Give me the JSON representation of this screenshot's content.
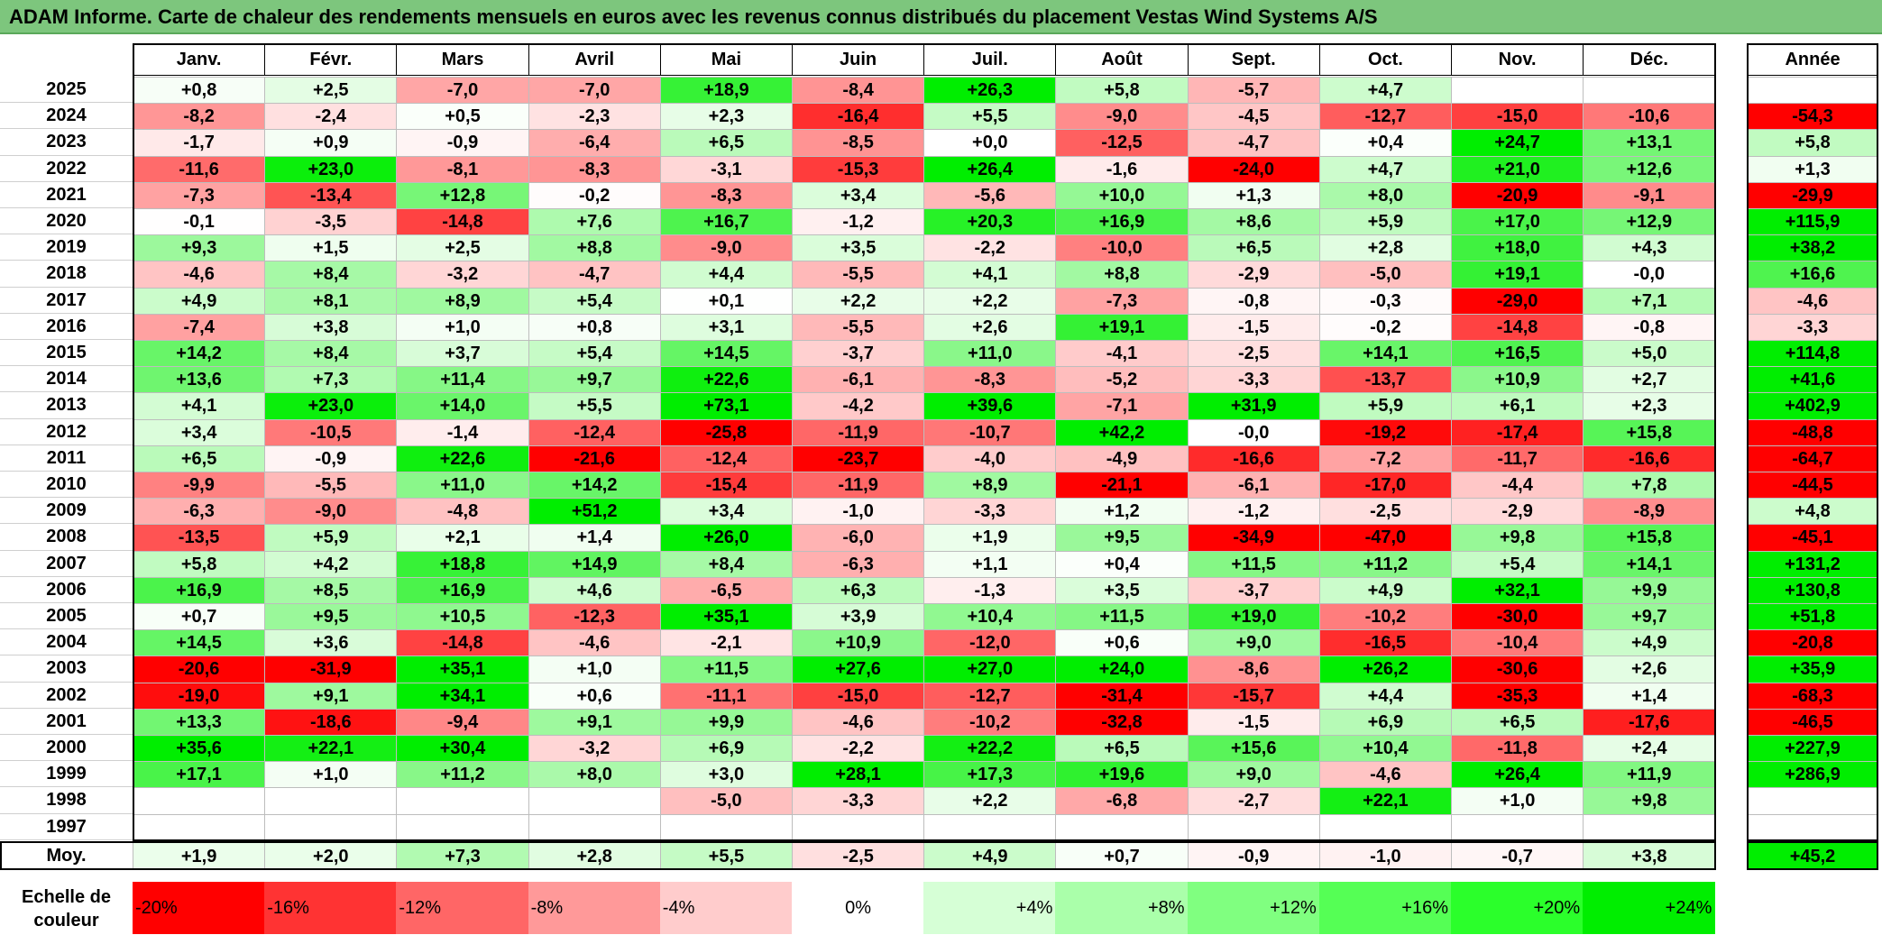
{
  "title": "ADAM Informe. Carte de chaleur des rendements mensuels en euros avec les revenus connus distribués du placement Vestas Wind Systems A/S",
  "chart_data": {
    "type": "heatmap",
    "title": "ADAM Informe. Carte de chaleur des rendements mensuels en euros avec les revenus connus distribués du placement Vestas Wind Systems A/S",
    "months": [
      "Janv.",
      "Févr.",
      "Mars",
      "Avril",
      "Mai",
      "Juin",
      "Juil.",
      "Août",
      "Sept.",
      "Oct.",
      "Nov.",
      "Déc."
    ],
    "year_column_label": "Année",
    "rows": [
      {
        "year": "2025",
        "values": [
          "+0,8",
          "+2,5",
          "-7,0",
          "-7,0",
          "+18,9",
          "-8,4",
          "+26,3",
          "+5,8",
          "-5,7",
          "+4,7",
          "",
          ""
        ],
        "annual": ""
      },
      {
        "year": "2024",
        "values": [
          "-8,2",
          "-2,4",
          "+0,5",
          "-2,3",
          "+2,3",
          "-16,4",
          "+5,5",
          "-9,0",
          "-4,5",
          "-12,7",
          "-15,0",
          "-10,6"
        ],
        "annual": "-54,3"
      },
      {
        "year": "2023",
        "values": [
          "-1,7",
          "+0,9",
          "-0,9",
          "-6,4",
          "+6,5",
          "-8,5",
          "+0,0",
          "-12,5",
          "-4,7",
          "+0,4",
          "+24,7",
          "+13,1"
        ],
        "annual": "+5,8"
      },
      {
        "year": "2022",
        "values": [
          "-11,6",
          "+23,0",
          "-8,1",
          "-8,3",
          "-3,1",
          "-15,3",
          "+26,4",
          "-1,6",
          "-24,0",
          "+4,7",
          "+21,0",
          "+12,6"
        ],
        "annual": "+1,3"
      },
      {
        "year": "2021",
        "values": [
          "-7,3",
          "-13,4",
          "+12,8",
          "-0,2",
          "-8,3",
          "+3,4",
          "-5,6",
          "+10,0",
          "+1,3",
          "+8,0",
          "-20,9",
          "-9,1"
        ],
        "annual": "-29,9"
      },
      {
        "year": "2020",
        "values": [
          "-0,1",
          "-3,5",
          "-14,8",
          "+7,6",
          "+16,7",
          "-1,2",
          "+20,3",
          "+16,9",
          "+8,6",
          "+5,9",
          "+17,0",
          "+12,9"
        ],
        "annual": "+115,9"
      },
      {
        "year": "2019",
        "values": [
          "+9,3",
          "+1,5",
          "+2,5",
          "+8,8",
          "-9,0",
          "+3,5",
          "-2,2",
          "-10,0",
          "+6,5",
          "+2,8",
          "+18,0",
          "+4,3"
        ],
        "annual": "+38,2"
      },
      {
        "year": "2018",
        "values": [
          "-4,6",
          "+8,4",
          "-3,2",
          "-4,7",
          "+4,4",
          "-5,5",
          "+4,1",
          "+8,8",
          "-2,9",
          "-5,0",
          "+19,1",
          "-0,0"
        ],
        "annual": "+16,6"
      },
      {
        "year": "2017",
        "values": [
          "+4,9",
          "+8,1",
          "+8,9",
          "+5,4",
          "+0,1",
          "+2,2",
          "+2,2",
          "-7,3",
          "-0,8",
          "-0,3",
          "-29,0",
          "+7,1"
        ],
        "annual": "-4,6"
      },
      {
        "year": "2016",
        "values": [
          "-7,4",
          "+3,8",
          "+1,0",
          "+0,8",
          "+3,1",
          "-5,5",
          "+2,6",
          "+19,1",
          "-1,5",
          "-0,2",
          "-14,8",
          "-0,8"
        ],
        "annual": "-3,3"
      },
      {
        "year": "2015",
        "values": [
          "+14,2",
          "+8,4",
          "+3,7",
          "+5,4",
          "+14,5",
          "-3,7",
          "+11,0",
          "-4,1",
          "-2,5",
          "+14,1",
          "+16,5",
          "+5,0"
        ],
        "annual": "+114,8"
      },
      {
        "year": "2014",
        "values": [
          "+13,6",
          "+7,3",
          "+11,4",
          "+9,7",
          "+22,6",
          "-6,1",
          "-8,3",
          "-5,2",
          "-3,3",
          "-13,7",
          "+10,9",
          "+2,7"
        ],
        "annual": "+41,6"
      },
      {
        "year": "2013",
        "values": [
          "+4,1",
          "+23,0",
          "+14,0",
          "+5,5",
          "+73,1",
          "-4,2",
          "+39,6",
          "-7,1",
          "+31,9",
          "+5,9",
          "+6,1",
          "+2,3"
        ],
        "annual": "+402,9"
      },
      {
        "year": "2012",
        "values": [
          "+3,4",
          "-10,5",
          "-1,4",
          "-12,4",
          "-25,8",
          "-11,9",
          "-10,7",
          "+42,2",
          "-0,0",
          "-19,2",
          "-17,4",
          "+15,8"
        ],
        "annual": "-48,8"
      },
      {
        "year": "2011",
        "values": [
          "+6,5",
          "-0,9",
          "+22,6",
          "-21,6",
          "-12,4",
          "-23,7",
          "-4,0",
          "-4,9",
          "-16,6",
          "-7,2",
          "-11,7",
          "-16,6"
        ],
        "annual": "-64,7"
      },
      {
        "year": "2010",
        "values": [
          "-9,9",
          "-5,5",
          "+11,0",
          "+14,2",
          "-15,4",
          "-11,9",
          "+8,9",
          "-21,1",
          "-6,1",
          "-17,0",
          "-4,4",
          "+7,8"
        ],
        "annual": "-44,5"
      },
      {
        "year": "2009",
        "values": [
          "-6,3",
          "-9,0",
          "-4,8",
          "+51,2",
          "+3,4",
          "-1,0",
          "-3,3",
          "+1,2",
          "-1,2",
          "-2,5",
          "-2,9",
          "-8,9"
        ],
        "annual": "+4,8"
      },
      {
        "year": "2008",
        "values": [
          "-13,5",
          "+5,9",
          "+2,1",
          "+1,4",
          "+26,0",
          "-6,0",
          "+1,9",
          "+9,5",
          "-34,9",
          "-47,0",
          "+9,8",
          "+15,8"
        ],
        "annual": "-45,1"
      },
      {
        "year": "2007",
        "values": [
          "+5,8",
          "+4,2",
          "+18,8",
          "+14,9",
          "+8,4",
          "-6,3",
          "+1,1",
          "+0,4",
          "+11,5",
          "+11,2",
          "+5,4",
          "+14,1"
        ],
        "annual": "+131,2"
      },
      {
        "year": "2006",
        "values": [
          "+16,9",
          "+8,5",
          "+16,9",
          "+4,6",
          "-6,5",
          "+6,3",
          "-1,3",
          "+3,5",
          "-3,7",
          "+4,9",
          "+32,1",
          "+9,9"
        ],
        "annual": "+130,8"
      },
      {
        "year": "2005",
        "values": [
          "+0,7",
          "+9,5",
          "+10,5",
          "-12,3",
          "+35,1",
          "+3,9",
          "+10,4",
          "+11,5",
          "+19,0",
          "-10,2",
          "-30,0",
          "+9,7"
        ],
        "annual": "+51,8"
      },
      {
        "year": "2004",
        "values": [
          "+14,5",
          "+3,6",
          "-14,8",
          "-4,6",
          "-2,1",
          "+10,9",
          "-12,0",
          "+0,6",
          "+9,0",
          "-16,5",
          "-10,4",
          "+4,9"
        ],
        "annual": "-20,8"
      },
      {
        "year": "2003",
        "values": [
          "-20,6",
          "-31,9",
          "+35,1",
          "+1,0",
          "+11,5",
          "+27,6",
          "+27,0",
          "+24,0",
          "-8,6",
          "+26,2",
          "-30,6",
          "+2,6"
        ],
        "annual": "+35,9"
      },
      {
        "year": "2002",
        "values": [
          "-19,0",
          "+9,1",
          "+34,1",
          "+0,6",
          "-11,1",
          "-15,0",
          "-12,7",
          "-31,4",
          "-15,7",
          "+4,4",
          "-35,3",
          "+1,4"
        ],
        "annual": "-68,3"
      },
      {
        "year": "2001",
        "values": [
          "+13,3",
          "-18,6",
          "-9,4",
          "+9,1",
          "+9,9",
          "-4,6",
          "-10,2",
          "-32,8",
          "-1,5",
          "+6,9",
          "+6,5",
          "-17,6"
        ],
        "annual": "-46,5"
      },
      {
        "year": "2000",
        "values": [
          "+35,6",
          "+22,1",
          "+30,4",
          "-3,2",
          "+6,9",
          "-2,2",
          "+22,2",
          "+6,5",
          "+15,6",
          "+10,4",
          "-11,8",
          "+2,4"
        ],
        "annual": "+227,9"
      },
      {
        "year": "1999",
        "values": [
          "+17,1",
          "+1,0",
          "+11,2",
          "+8,0",
          "+3,0",
          "+28,1",
          "+17,3",
          "+19,6",
          "+9,0",
          "-4,6",
          "+26,4",
          "+11,9"
        ],
        "annual": "+286,9"
      },
      {
        "year": "1998",
        "values": [
          "",
          "",
          "",
          "",
          "-5,0",
          "-3,3",
          "+2,2",
          "-6,8",
          "-2,7",
          "+22,1",
          "+1,0",
          "+9,8"
        ],
        "annual": ""
      },
      {
        "year": "1997",
        "values": [
          "",
          "",
          "",
          "",
          "",
          "",
          "",
          "",
          "",
          "",
          "",
          ""
        ],
        "annual": ""
      }
    ],
    "average": {
      "label": "Moy.",
      "values": [
        "+1,9",
        "+2,0",
        "+7,3",
        "+2,8",
        "+5,5",
        "-2,5",
        "+4,9",
        "+0,7",
        "-0,9",
        "-1,0",
        "-0,7",
        "+3,8"
      ],
      "annual": "+45,2"
    },
    "scale": {
      "label_line1": "Echelle de",
      "label_line2": "couleur",
      "steps": [
        {
          "label": "-20%",
          "value": -20,
          "color": "#ff0000"
        },
        {
          "label": "-16%",
          "value": -16,
          "color": "#ff3333"
        },
        {
          "label": "-12%",
          "value": -12,
          "color": "#ff6666"
        },
        {
          "label": "-8%",
          "value": -8,
          "color": "#ff9999"
        },
        {
          "label": "-4%",
          "value": -4,
          "color": "#ffcccc"
        },
        {
          "label": "0%",
          "value": 0,
          "color": "#ffffff"
        },
        {
          "label": "+4%",
          "value": 4,
          "color": "#d6ffd6"
        },
        {
          "label": "+8%",
          "value": 8,
          "color": "#aaffaa"
        },
        {
          "label": "+12%",
          "value": 12,
          "color": "#80ff80"
        },
        {
          "label": "+16%",
          "value": 16,
          "color": "#55ff55"
        },
        {
          "label": "+20%",
          "value": 20,
          "color": "#2bff2b"
        },
        {
          "label": "+24%",
          "value": 24,
          "color": "#00ee00"
        }
      ]
    }
  }
}
